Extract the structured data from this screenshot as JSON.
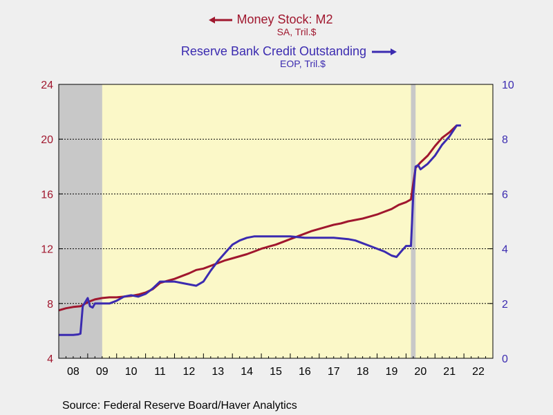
{
  "chart_data": {
    "type": "line",
    "legend": [
      {
        "name": "Money Stock: M2",
        "sub": "SA, Tril.$",
        "arrow": "left",
        "color": "#a0172e"
      },
      {
        "name": "Reserve Bank Credit Outstanding",
        "sub": "EOP, Tril.$",
        "arrow": "right",
        "color": "#3b2bb0"
      }
    ],
    "x_tick_labels": [
      "08",
      "09",
      "10",
      "11",
      "12",
      "13",
      "14",
      "15",
      "16",
      "17",
      "18",
      "19",
      "20",
      "21",
      "22"
    ],
    "xlim": [
      2008.0,
      2023.0
    ],
    "left_axis": {
      "ylim": [
        4,
        24
      ],
      "ticks": [
        "4",
        "8",
        "12",
        "16",
        "20",
        "24"
      ],
      "color": "#a0172e"
    },
    "right_axis": {
      "ylim": [
        0,
        10
      ],
      "ticks": [
        "0",
        "2",
        "4",
        "6",
        "8",
        "10"
      ],
      "color": "#3b2bb0"
    },
    "grid": "horizontal dashed",
    "shaded_periods": [
      [
        2008.0,
        2009.5
      ],
      [
        2020.17,
        2020.33
      ]
    ],
    "plot_background": "#fbf8c8",
    "shade_color": "#c8c8c8",
    "series": [
      {
        "name": "Money Stock: M2",
        "axis": "left",
        "points": [
          [
            2008.0,
            7.5
          ],
          [
            2008.25,
            7.65
          ],
          [
            2008.5,
            7.75
          ],
          [
            2008.75,
            7.8
          ],
          [
            2009.0,
            8.1
          ],
          [
            2009.25,
            8.3
          ],
          [
            2009.5,
            8.4
          ],
          [
            2009.75,
            8.45
          ],
          [
            2010.0,
            8.45
          ],
          [
            2010.25,
            8.5
          ],
          [
            2010.5,
            8.55
          ],
          [
            2010.75,
            8.65
          ],
          [
            2011.0,
            8.8
          ],
          [
            2011.25,
            9.05
          ],
          [
            2011.5,
            9.5
          ],
          [
            2011.75,
            9.65
          ],
          [
            2012.0,
            9.8
          ],
          [
            2012.25,
            10.0
          ],
          [
            2012.5,
            10.2
          ],
          [
            2012.75,
            10.45
          ],
          [
            2013.0,
            10.55
          ],
          [
            2013.25,
            10.75
          ],
          [
            2013.5,
            10.95
          ],
          [
            2013.75,
            11.15
          ],
          [
            2014.0,
            11.3
          ],
          [
            2014.25,
            11.45
          ],
          [
            2014.5,
            11.6
          ],
          [
            2014.75,
            11.8
          ],
          [
            2015.0,
            12.0
          ],
          [
            2015.25,
            12.15
          ],
          [
            2015.5,
            12.3
          ],
          [
            2015.75,
            12.5
          ],
          [
            2016.0,
            12.7
          ],
          [
            2016.25,
            12.9
          ],
          [
            2016.5,
            13.1
          ],
          [
            2016.75,
            13.3
          ],
          [
            2017.0,
            13.45
          ],
          [
            2017.25,
            13.6
          ],
          [
            2017.5,
            13.75
          ],
          [
            2017.75,
            13.85
          ],
          [
            2018.0,
            14.0
          ],
          [
            2018.25,
            14.1
          ],
          [
            2018.5,
            14.2
          ],
          [
            2018.75,
            14.35
          ],
          [
            2019.0,
            14.5
          ],
          [
            2019.25,
            14.7
          ],
          [
            2019.5,
            14.9
          ],
          [
            2019.75,
            15.2
          ],
          [
            2020.0,
            15.4
          ],
          [
            2020.17,
            15.6
          ],
          [
            2020.25,
            16.8
          ],
          [
            2020.33,
            17.9
          ],
          [
            2020.5,
            18.3
          ],
          [
            2020.75,
            18.8
          ],
          [
            2021.0,
            19.5
          ],
          [
            2021.25,
            20.1
          ],
          [
            2021.5,
            20.5
          ],
          [
            2021.75,
            21.0
          ]
        ]
      },
      {
        "name": "Reserve Bank Credit Outstanding",
        "axis": "right",
        "points": [
          [
            2008.0,
            0.85
          ],
          [
            2008.5,
            0.85
          ],
          [
            2008.67,
            0.87
          ],
          [
            2008.75,
            0.9
          ],
          [
            2008.83,
            1.9
          ],
          [
            2009.0,
            2.2
          ],
          [
            2009.08,
            1.9
          ],
          [
            2009.17,
            1.85
          ],
          [
            2009.25,
            2.0
          ],
          [
            2009.5,
            2.0
          ],
          [
            2009.75,
            2.0
          ],
          [
            2010.0,
            2.1
          ],
          [
            2010.25,
            2.25
          ],
          [
            2010.5,
            2.3
          ],
          [
            2010.75,
            2.25
          ],
          [
            2011.0,
            2.35
          ],
          [
            2011.25,
            2.55
          ],
          [
            2011.5,
            2.8
          ],
          [
            2011.75,
            2.8
          ],
          [
            2012.0,
            2.8
          ],
          [
            2012.25,
            2.75
          ],
          [
            2012.5,
            2.7
          ],
          [
            2012.75,
            2.65
          ],
          [
            2013.0,
            2.8
          ],
          [
            2013.25,
            3.2
          ],
          [
            2013.5,
            3.55
          ],
          [
            2013.75,
            3.85
          ],
          [
            2014.0,
            4.15
          ],
          [
            2014.25,
            4.3
          ],
          [
            2014.5,
            4.4
          ],
          [
            2014.75,
            4.45
          ],
          [
            2015.0,
            4.45
          ],
          [
            2015.5,
            4.45
          ],
          [
            2016.0,
            4.45
          ],
          [
            2016.5,
            4.4
          ],
          [
            2017.0,
            4.4
          ],
          [
            2017.5,
            4.4
          ],
          [
            2018.0,
            4.35
          ],
          [
            2018.25,
            4.3
          ],
          [
            2018.5,
            4.2
          ],
          [
            2018.75,
            4.1
          ],
          [
            2019.0,
            4.0
          ],
          [
            2019.25,
            3.9
          ],
          [
            2019.5,
            3.75
          ],
          [
            2019.67,
            3.7
          ],
          [
            2019.83,
            3.9
          ],
          [
            2020.0,
            4.1
          ],
          [
            2020.17,
            4.1
          ],
          [
            2020.25,
            6.0
          ],
          [
            2020.33,
            7.0
          ],
          [
            2020.42,
            7.05
          ],
          [
            2020.5,
            6.9
          ],
          [
            2020.75,
            7.1
          ],
          [
            2021.0,
            7.4
          ],
          [
            2021.25,
            7.8
          ],
          [
            2021.5,
            8.1
          ],
          [
            2021.75,
            8.5
          ],
          [
            2021.9,
            8.5
          ]
        ]
      }
    ]
  },
  "source": "Source:  Federal Reserve Board/Haver Analytics"
}
